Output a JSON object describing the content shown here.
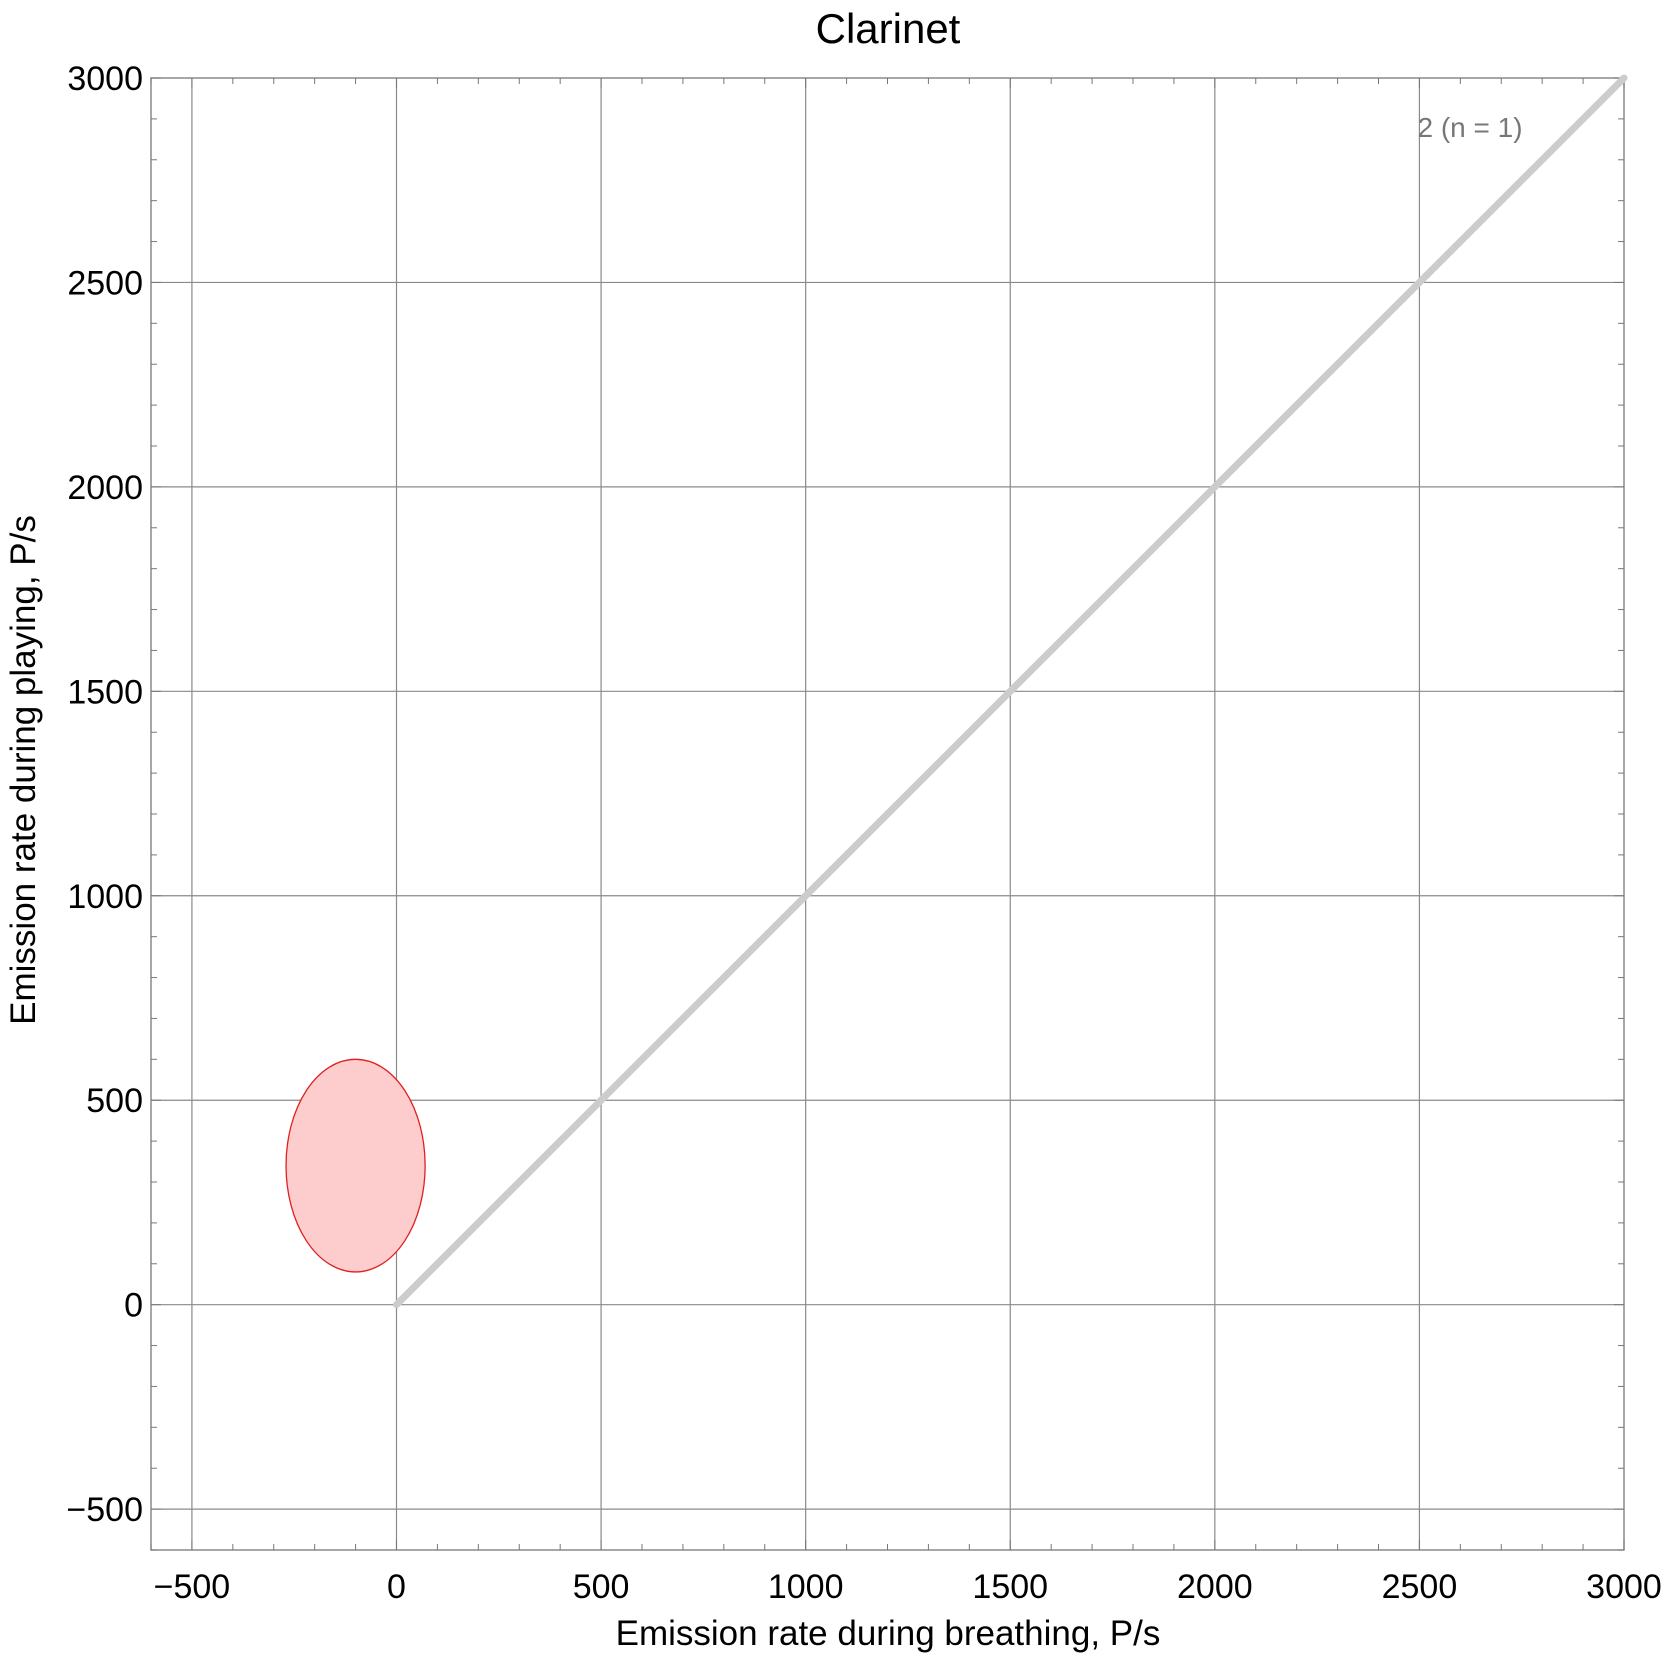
{
  "chart_data": {
    "type": "scatter",
    "title": "Clarinet",
    "xlabel": "Emission rate during breathing,  P/s",
    "ylabel": "Emission rate during playing,  P/s",
    "xlim": [
      -600,
      3000
    ],
    "ylim": [
      -600,
      3000
    ],
    "x_ticks": [
      -500,
      0,
      500,
      1000,
      1500,
      2000,
      2500,
      3000
    ],
    "y_ticks": [
      -500,
      0,
      500,
      1000,
      1500,
      2000,
      2500,
      3000
    ],
    "tick_labels": {
      "x": [
        "−500",
        "0",
        "500",
        "1000",
        "1500",
        "2000",
        "2500",
        "3000"
      ],
      "y": [
        "−500",
        "0",
        "500",
        "1000",
        "1500",
        "2000",
        "2500",
        "3000"
      ]
    },
    "grid": true,
    "reference_line": {
      "from": [
        0,
        0
      ],
      "to": [
        3000,
        3000
      ],
      "color": "#cccccc"
    },
    "annotation": "2  (n = 1)",
    "series": [
      {
        "shape": "ellipse",
        "center": [
          -100,
          340
        ],
        "radius": [
          170,
          260
        ],
        "fill": "#fdcccc",
        "stroke": "#e02020"
      }
    ]
  }
}
